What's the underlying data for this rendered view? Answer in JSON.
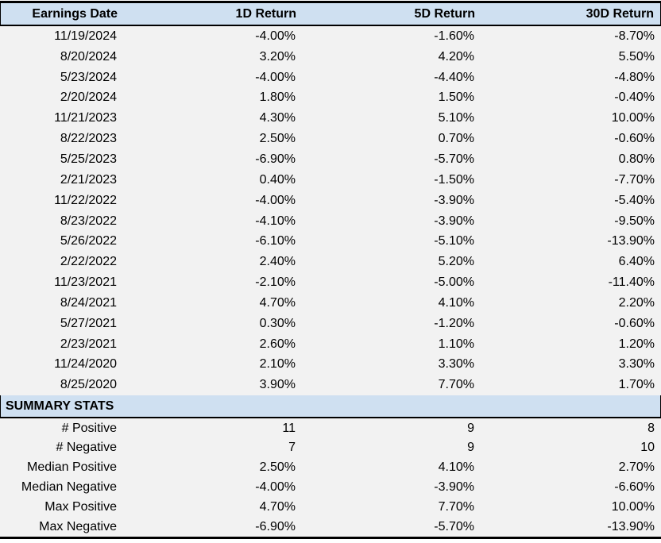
{
  "chart_data": {
    "type": "table",
    "columns": [
      "Earnings Date",
      "1D Return",
      "5D Return",
      "30D Return"
    ],
    "rows": [
      [
        "11/19/2024",
        "-4.00%",
        "-1.60%",
        "-8.70%"
      ],
      [
        "8/20/2024",
        "3.20%",
        "4.20%",
        "5.50%"
      ],
      [
        "5/23/2024",
        "-4.00%",
        "-4.40%",
        "-4.80%"
      ],
      [
        "2/20/2024",
        "1.80%",
        "1.50%",
        "-0.40%"
      ],
      [
        "11/21/2023",
        "4.30%",
        "5.10%",
        "10.00%"
      ],
      [
        "8/22/2023",
        "2.50%",
        "0.70%",
        "-0.60%"
      ],
      [
        "5/25/2023",
        "-6.90%",
        "-5.70%",
        "0.80%"
      ],
      [
        "2/21/2023",
        "0.40%",
        "-1.50%",
        "-7.70%"
      ],
      [
        "11/22/2022",
        "-4.00%",
        "-3.90%",
        "-5.40%"
      ],
      [
        "8/23/2022",
        "-4.10%",
        "-3.90%",
        "-9.50%"
      ],
      [
        "5/26/2022",
        "-6.10%",
        "-5.10%",
        "-13.90%"
      ],
      [
        "2/22/2022",
        "2.40%",
        "5.20%",
        "6.40%"
      ],
      [
        "11/23/2021",
        "-2.10%",
        "-5.00%",
        "-11.40%"
      ],
      [
        "8/24/2021",
        "4.70%",
        "4.10%",
        "2.20%"
      ],
      [
        "5/27/2021",
        "0.30%",
        "-1.20%",
        "-0.60%"
      ],
      [
        "2/23/2021",
        "2.60%",
        "1.10%",
        "1.20%"
      ],
      [
        "11/24/2020",
        "2.10%",
        "3.30%",
        "3.30%"
      ],
      [
        "8/25/2020",
        "3.90%",
        "7.70%",
        "1.70%"
      ]
    ],
    "summary_title": "SUMMARY STATS",
    "summary_rows": [
      [
        "# Positive",
        "11",
        "9",
        "8"
      ],
      [
        "# Negative",
        "7",
        "9",
        "10"
      ],
      [
        "Median Positive",
        "2.50%",
        "4.10%",
        "2.70%"
      ],
      [
        "Median Negative",
        "-4.00%",
        "-3.90%",
        "-6.60%"
      ],
      [
        "Max Positive",
        "4.70%",
        "7.70%",
        "10.00%"
      ],
      [
        "Max Negative",
        "-6.90%",
        "-5.70%",
        "-13.90%"
      ]
    ]
  },
  "colors": {
    "header_bg": "#CFE0F1",
    "body_bg": "#F2F2F2",
    "border": "#000000",
    "text": "#000000"
  }
}
